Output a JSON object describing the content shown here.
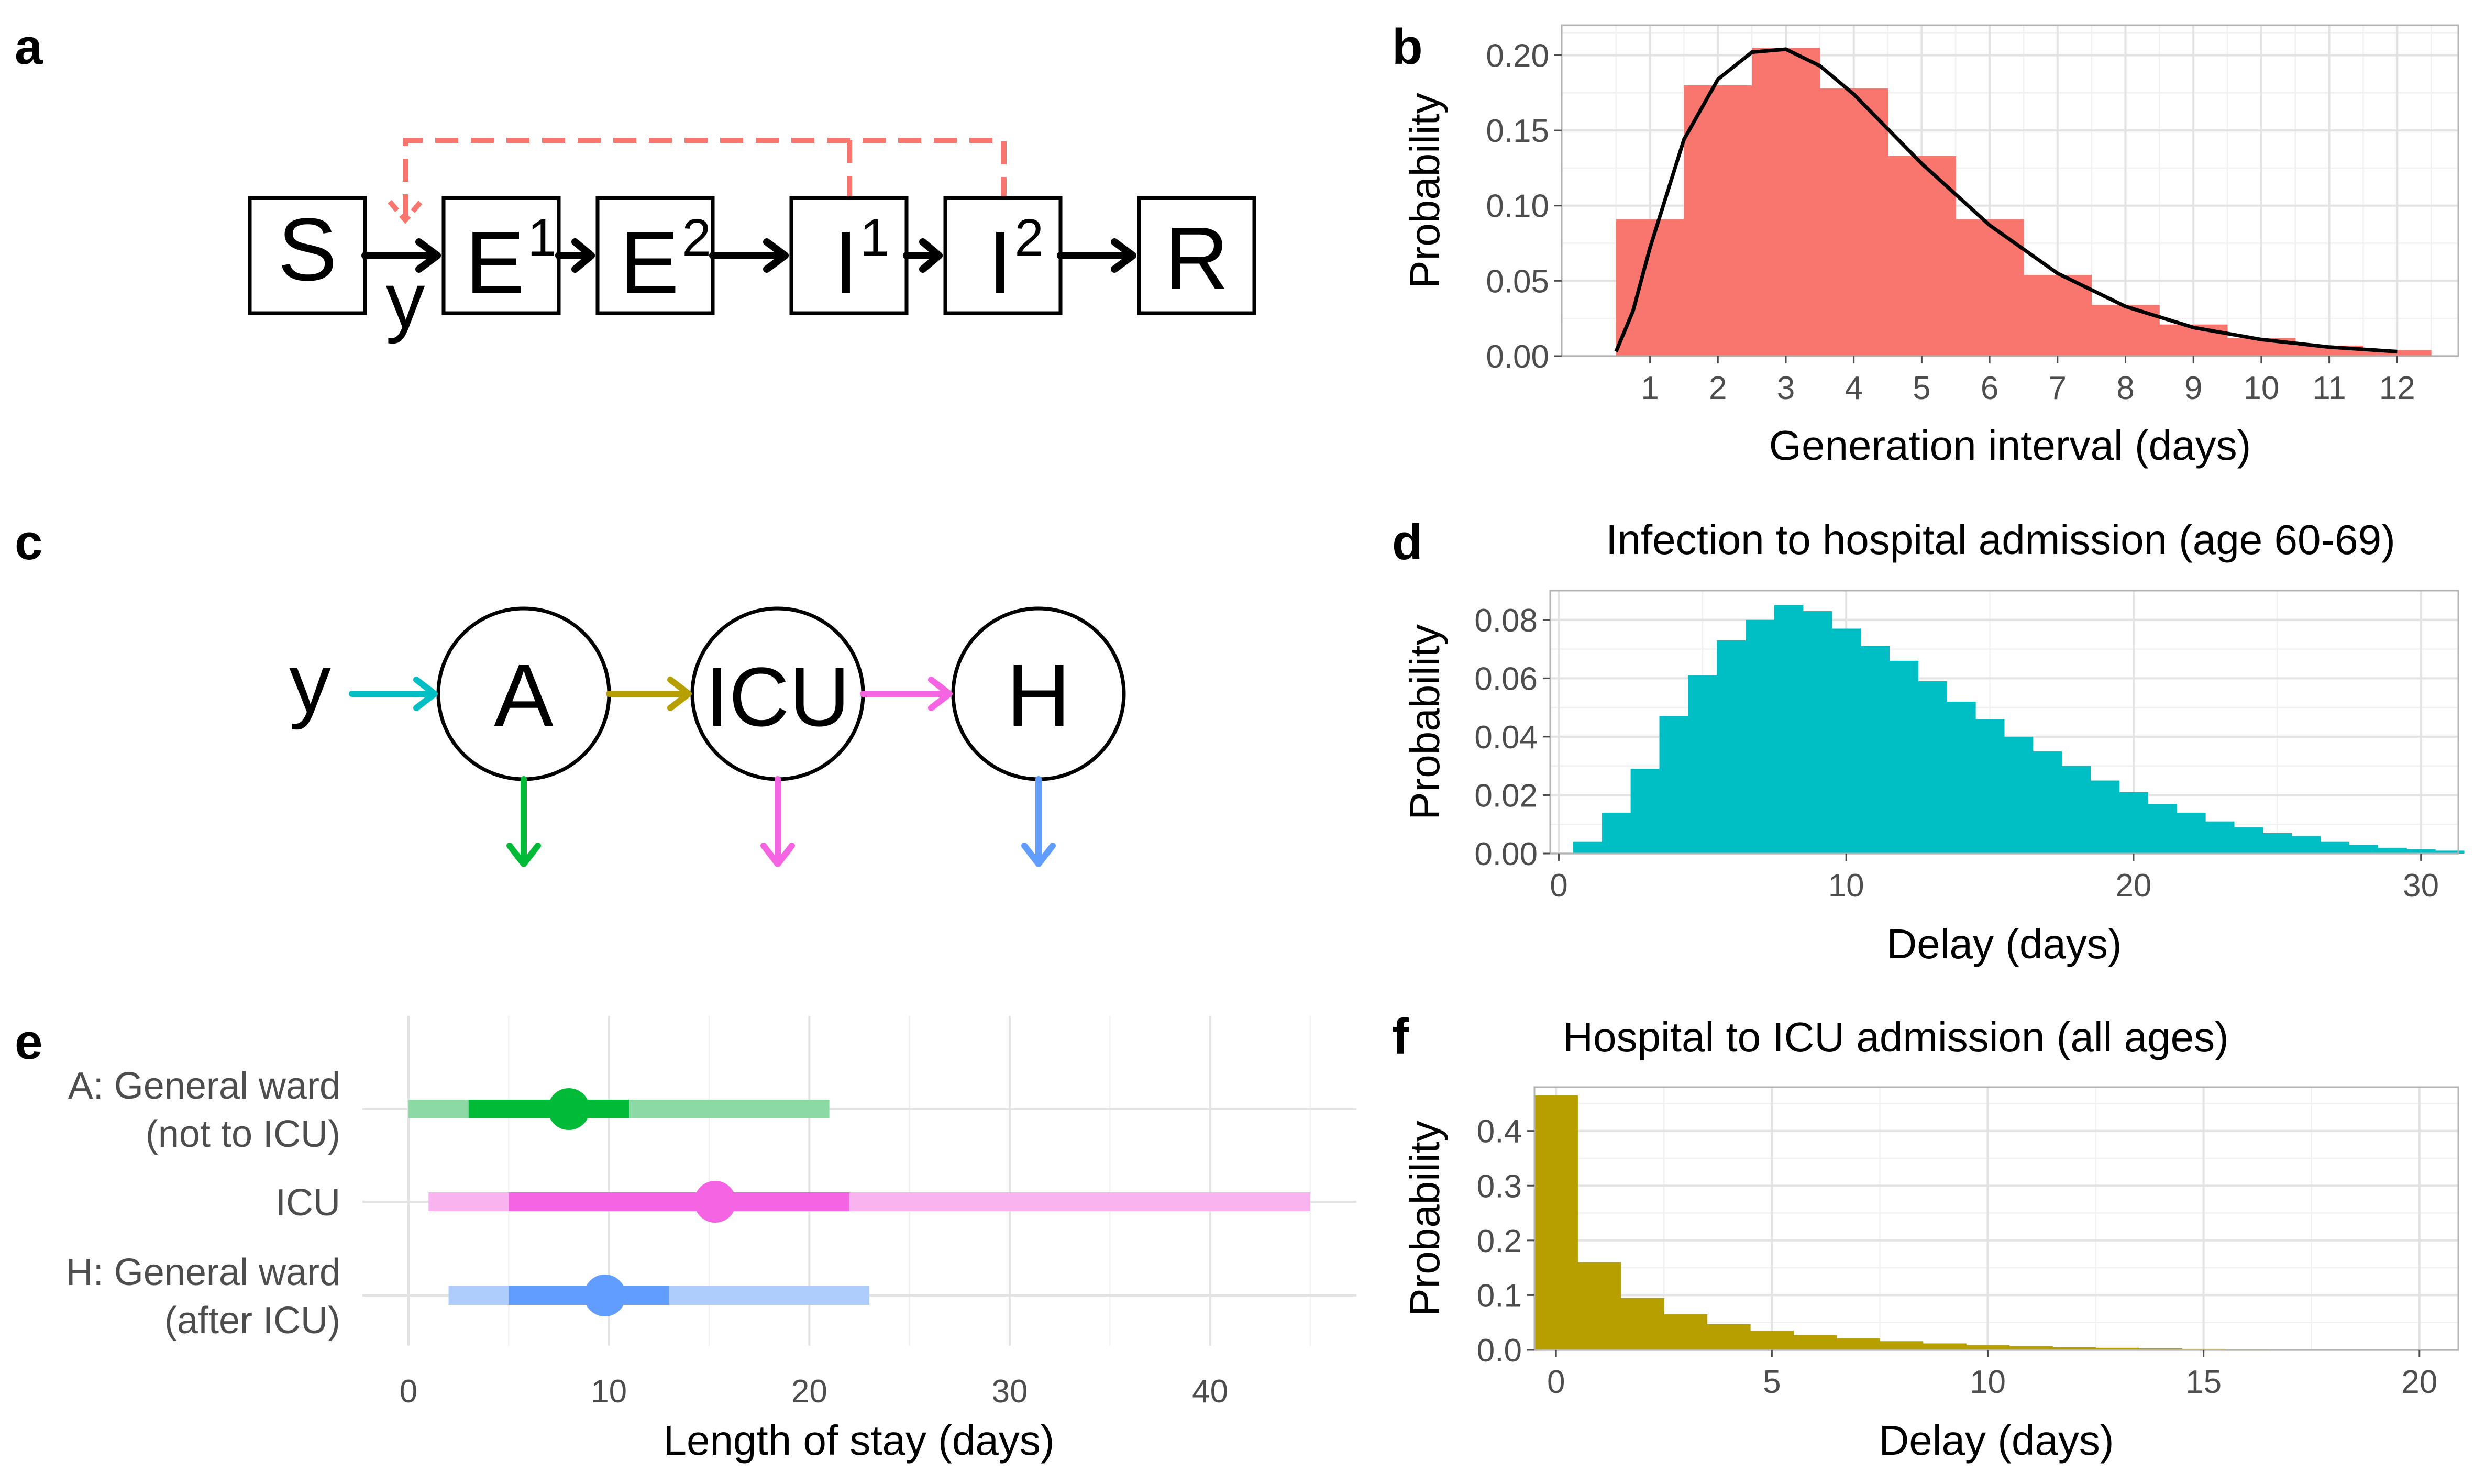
{
  "panels": {
    "a": "a",
    "b": "b",
    "c": "c",
    "d": "d",
    "e": "e",
    "f": "f"
  },
  "diagram_a": {
    "nodes": [
      "S",
      "E",
      "E",
      "I",
      "I",
      "R"
    ],
    "superscripts": [
      "",
      "1",
      "2",
      "1",
      "2",
      ""
    ],
    "input_label": "y",
    "feedback_color": "#F8766D"
  },
  "diagram_c": {
    "input_label": "y",
    "nodes": [
      "A",
      "ICU",
      "H"
    ],
    "colors": {
      "input": "#00BFC4",
      "a_to_icu": "#B79F00",
      "icu_to_h": "#F564E3",
      "out_a": "#00BA38",
      "out_icu": "#F564E3",
      "out_h": "#619CFF"
    }
  },
  "chart_data": [
    {
      "panel": "b",
      "type": "bar",
      "title": "",
      "xlabel": "Generation interval (days)",
      "ylabel": "Probability",
      "x": [
        1,
        2,
        3,
        4,
        5,
        6,
        7,
        8,
        9,
        10,
        11,
        12
      ],
      "values": [
        0.091,
        0.18,
        0.205,
        0.178,
        0.133,
        0.091,
        0.054,
        0.034,
        0.021,
        0.012,
        0.007,
        0.004
      ],
      "curve": {
        "x": [
          0.5,
          0.75,
          1,
          1.5,
          2,
          2.5,
          3,
          3.5,
          4,
          4.5,
          5,
          6,
          7,
          8,
          9,
          10,
          11,
          12
        ],
        "y": [
          0.003,
          0.03,
          0.072,
          0.144,
          0.184,
          0.202,
          0.204,
          0.193,
          0.174,
          0.151,
          0.128,
          0.087,
          0.055,
          0.033,
          0.019,
          0.011,
          0.006,
          0.003
        ]
      },
      "xticks": [
        "1",
        "2",
        "3",
        "4",
        "5",
        "6",
        "7",
        "8",
        "9",
        "10",
        "11",
        "12"
      ],
      "yticks": [
        "0.00",
        "0.05",
        "0.10",
        "0.15",
        "0.20"
      ],
      "xlim": [
        -0.3,
        12.9
      ],
      "ylim": [
        0,
        0.22
      ],
      "color": "#F8766D",
      "curve_color": "#000000"
    },
    {
      "panel": "d",
      "type": "bar",
      "title": "Infection to hospital admission (age 60-69)",
      "xlabel": "Delay (days)",
      "ylabel": "Probability",
      "x": [
        1,
        2,
        3,
        4,
        5,
        6,
        7,
        8,
        9,
        10,
        11,
        12,
        13,
        14,
        15,
        16,
        17,
        18,
        19,
        20,
        21,
        22,
        23,
        24,
        25,
        26,
        27,
        28,
        29,
        30,
        31
      ],
      "values": [
        0.004,
        0.014,
        0.029,
        0.047,
        0.061,
        0.073,
        0.08,
        0.085,
        0.083,
        0.077,
        0.071,
        0.066,
        0.059,
        0.052,
        0.046,
        0.04,
        0.035,
        0.03,
        0.025,
        0.021,
        0.017,
        0.014,
        0.011,
        0.009,
        0.007,
        0.006,
        0.004,
        0.003,
        0.002,
        0.0015,
        0.001
      ],
      "xticks": [
        "0",
        "10",
        "20",
        "30"
      ],
      "yticks": [
        "0.00",
        "0.02",
        "0.04",
        "0.06",
        "0.08"
      ],
      "xlim": [
        -0.3,
        31.3
      ],
      "ylim": [
        0,
        0.09
      ],
      "color": "#00BFC4"
    },
    {
      "panel": "e",
      "type": "interval",
      "title": "",
      "xlabel": "Length of stay (days)",
      "ylabel": "",
      "categories": [
        "A: General ward\n(not to ICU)",
        "ICU",
        "H: General ward\n(after ICU)"
      ],
      "series": [
        {
          "outer": [
            0,
            21
          ],
          "inner": [
            3,
            11
          ],
          "median": 8,
          "color": "#00BA38",
          "light": "#8DD9A6"
        },
        {
          "outer": [
            1,
            45
          ],
          "inner": [
            5,
            22
          ],
          "median": 15.3,
          "color": "#F564E3",
          "light": "#F9B4F0"
        },
        {
          "outer": [
            2,
            23
          ],
          "inner": [
            5,
            13
          ],
          "median": 9.8,
          "color": "#619CFF",
          "light": "#AECDFD"
        }
      ],
      "xticks": [
        "0",
        "10",
        "20",
        "30",
        "40"
      ],
      "xlim": [
        -2.3,
        47.3
      ]
    },
    {
      "panel": "f",
      "type": "bar",
      "title": "Hospital to ICU admission (all ages)",
      "xlabel": "Delay (days)",
      "ylabel": "Probability",
      "x": [
        0,
        1,
        2,
        3,
        4,
        5,
        6,
        7,
        8,
        9,
        10,
        11,
        12,
        13,
        14,
        15,
        16,
        17,
        18,
        19,
        20
      ],
      "values": [
        0.465,
        0.16,
        0.095,
        0.065,
        0.047,
        0.035,
        0.027,
        0.021,
        0.016,
        0.012,
        0.009,
        0.007,
        0.005,
        0.004,
        0.003,
        0.002,
        0.0015,
        0.001,
        0.0008,
        0.0006,
        0.0005
      ],
      "xticks": [
        "0",
        "5",
        "10",
        "15",
        "20"
      ],
      "yticks": [
        "0.0",
        "0.1",
        "0.2",
        "0.3",
        "0.4"
      ],
      "xlim": [
        -0.5,
        20.9
      ],
      "ylim": [
        0,
        0.48
      ],
      "color": "#B79F00"
    }
  ]
}
